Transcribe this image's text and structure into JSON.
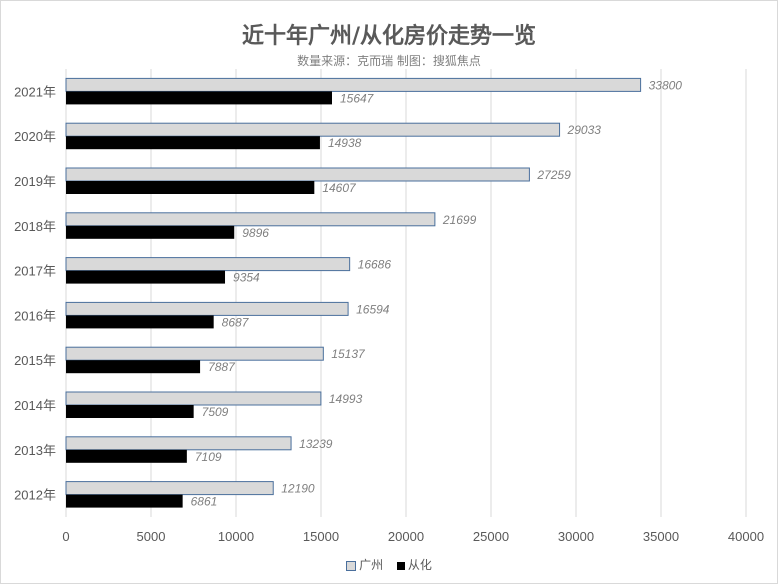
{
  "chart_data": {
    "type": "bar",
    "orientation": "horizontal",
    "title": "近十年广州/从化房价走势一览",
    "subtitle": "数量来源：克而瑞  制图：搜狐焦点",
    "categories": [
      "2021年",
      "2020年",
      "2019年",
      "2018年",
      "2017年",
      "2016年",
      "2015年",
      "2014年",
      "2013年",
      "2012年"
    ],
    "series": [
      {
        "name": "广州",
        "color": "#d9d9d9",
        "border": "#4a6f9c",
        "values": [
          33800,
          29033,
          27259,
          21699,
          16686,
          16594,
          15137,
          14993,
          13239,
          12190
        ]
      },
      {
        "name": "从化",
        "color": "#000000",
        "values": [
          15647,
          14938,
          14607,
          9896,
          9354,
          8687,
          7887,
          7509,
          7109,
          6861
        ]
      }
    ],
    "xlim": [
      0,
      40000
    ],
    "xticks": [
      0,
      5000,
      10000,
      15000,
      20000,
      25000,
      30000,
      35000,
      40000
    ],
    "grid": true,
    "legend": "bottom",
    "data_labels": true
  }
}
